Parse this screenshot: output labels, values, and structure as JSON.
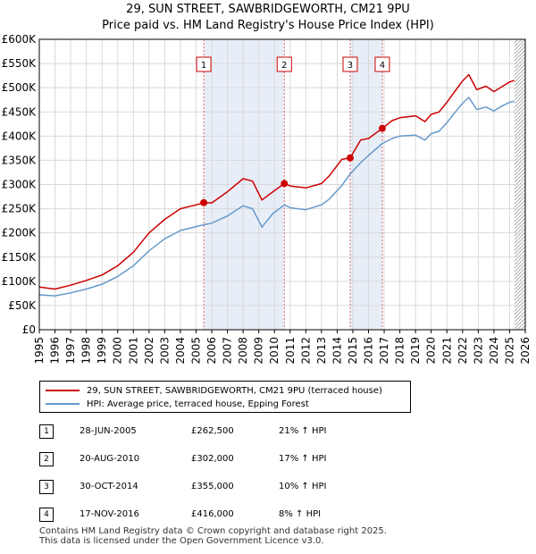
{
  "title": {
    "line1": "29, SUN STREET, SAWBRIDGEWORTH, CM21 9PU",
    "line2": "Price paid vs. HM Land Registry's House Price Index (HPI)"
  },
  "chart_data": {
    "type": "line",
    "title": "29, SUN STREET, SAWBRIDGEWORTH, CM21 9PU - Price paid vs. HM Land Registry's House Price Index (HPI)",
    "xlabel": "",
    "ylabel": "",
    "xlim": [
      1995,
      2026
    ],
    "ylim": [
      0,
      600000
    ],
    "yticks": [
      {
        "value": 0,
        "label": "£0"
      },
      {
        "value": 50000,
        "label": "£50K"
      },
      {
        "value": 100000,
        "label": "£100K"
      },
      {
        "value": 150000,
        "label": "£150K"
      },
      {
        "value": 200000,
        "label": "£200K"
      },
      {
        "value": 250000,
        "label": "£250K"
      },
      {
        "value": 300000,
        "label": "£300K"
      },
      {
        "value": 350000,
        "label": "£350K"
      },
      {
        "value": 400000,
        "label": "£400K"
      },
      {
        "value": 450000,
        "label": "£450K"
      },
      {
        "value": 500000,
        "label": "£500K"
      },
      {
        "value": 550000,
        "label": "£550K"
      },
      {
        "value": 600000,
        "label": "£600K"
      }
    ],
    "xticks": [
      "1995",
      "1996",
      "1997",
      "1998",
      "1999",
      "2000",
      "2001",
      "2002",
      "2003",
      "2004",
      "2005",
      "2006",
      "2007",
      "2008",
      "2009",
      "2010",
      "2011",
      "2012",
      "2013",
      "2014",
      "2015",
      "2016",
      "2017",
      "2018",
      "2019",
      "2020",
      "2021",
      "2022",
      "2023",
      "2024",
      "2025",
      "2026"
    ],
    "grid": true,
    "series": [
      {
        "name": "29, SUN STREET, SAWBRIDGEWORTH, CM21 9PU (terraced house)",
        "color": "#cc0000",
        "points": [
          [
            1995.0,
            88000
          ],
          [
            1996.0,
            84000
          ],
          [
            1997.0,
            92000
          ],
          [
            1998.0,
            102000
          ],
          [
            1999.0,
            113000
          ],
          [
            2000.0,
            132000
          ],
          [
            2001.0,
            160000
          ],
          [
            2002.0,
            200000
          ],
          [
            2003.0,
            228000
          ],
          [
            2004.0,
            250000
          ],
          [
            2005.0,
            258000
          ],
          [
            2005.49,
            262500
          ],
          [
            2006.0,
            262000
          ],
          [
            2007.0,
            285000
          ],
          [
            2008.0,
            312000
          ],
          [
            2008.6,
            307000
          ],
          [
            2009.2,
            268000
          ],
          [
            2009.9,
            285000
          ],
          [
            2010.63,
            302000
          ],
          [
            2011.0,
            297000
          ],
          [
            2012.0,
            293000
          ],
          [
            2013.0,
            302000
          ],
          [
            2013.5,
            318000
          ],
          [
            2014.3,
            352000
          ],
          [
            2014.83,
            355000
          ],
          [
            2015.5,
            392000
          ],
          [
            2016.0,
            395000
          ],
          [
            2016.88,
            416000
          ],
          [
            2017.5,
            432000
          ],
          [
            2018.0,
            438000
          ],
          [
            2019.0,
            442000
          ],
          [
            2019.6,
            430000
          ],
          [
            2020.0,
            445000
          ],
          [
            2020.5,
            450000
          ],
          [
            2021.0,
            470000
          ],
          [
            2021.5,
            492000
          ],
          [
            2022.0,
            514000
          ],
          [
            2022.4,
            527000
          ],
          [
            2022.9,
            496000
          ],
          [
            2023.5,
            503000
          ],
          [
            2024.0,
            492000
          ],
          [
            2024.5,
            502000
          ],
          [
            2025.0,
            512000
          ],
          [
            2025.3,
            515000
          ]
        ]
      },
      {
        "name": "HPI: Average price, terraced house, Epping Forest",
        "color": "#6699cc",
        "points": [
          [
            1995.0,
            72000
          ],
          [
            1996.0,
            70000
          ],
          [
            1997.0,
            76000
          ],
          [
            1998.0,
            84000
          ],
          [
            1999.0,
            94000
          ],
          [
            2000.0,
            110000
          ],
          [
            2001.0,
            132000
          ],
          [
            2002.0,
            163000
          ],
          [
            2003.0,
            188000
          ],
          [
            2004.0,
            205000
          ],
          [
            2005.0,
            213000
          ],
          [
            2005.49,
            217000
          ],
          [
            2006.0,
            220000
          ],
          [
            2007.0,
            235000
          ],
          [
            2008.0,
            256000
          ],
          [
            2008.6,
            250000
          ],
          [
            2009.2,
            212000
          ],
          [
            2009.9,
            240000
          ],
          [
            2010.63,
            258000
          ],
          [
            2011.0,
            252000
          ],
          [
            2012.0,
            248000
          ],
          [
            2013.0,
            258000
          ],
          [
            2013.5,
            270000
          ],
          [
            2014.3,
            298000
          ],
          [
            2014.83,
            322000
          ],
          [
            2015.5,
            345000
          ],
          [
            2016.0,
            360000
          ],
          [
            2016.88,
            385000
          ],
          [
            2017.5,
            395000
          ],
          [
            2018.0,
            400000
          ],
          [
            2019.0,
            402000
          ],
          [
            2019.6,
            392000
          ],
          [
            2020.0,
            405000
          ],
          [
            2020.5,
            410000
          ],
          [
            2021.0,
            428000
          ],
          [
            2021.5,
            448000
          ],
          [
            2022.0,
            468000
          ],
          [
            2022.4,
            480000
          ],
          [
            2022.9,
            455000
          ],
          [
            2023.5,
            460000
          ],
          [
            2024.0,
            452000
          ],
          [
            2024.5,
            462000
          ],
          [
            2025.0,
            470000
          ],
          [
            2025.3,
            472000
          ]
        ]
      }
    ],
    "sales": [
      {
        "num": "1",
        "x": 2005.49,
        "price": 262500,
        "date": "28-JUN-2005",
        "price_label": "£262,500",
        "hpi": "21% ↑ HPI"
      },
      {
        "num": "2",
        "x": 2010.63,
        "price": 302000,
        "date": "20-AUG-2010",
        "price_label": "£302,000",
        "hpi": "17% ↑ HPI"
      },
      {
        "num": "3",
        "x": 2014.83,
        "price": 355000,
        "date": "30-OCT-2014",
        "price_label": "£355,000",
        "hpi": "10% ↑ HPI"
      },
      {
        "num": "4",
        "x": 2016.88,
        "price": 416000,
        "date": "17-NOV-2016",
        "price_label": "£416,000",
        "hpi": "8% ↑ HPI"
      }
    ],
    "shaded_ranges": [
      [
        2005.49,
        2010.63
      ],
      [
        2014.83,
        2016.88
      ]
    ],
    "future_from": 2025.3
  },
  "legend": {
    "entries": [
      {
        "label": "29, SUN STREET, SAWBRIDGEWORTH, CM21 9PU (terraced house)",
        "color": "#cc0000"
      },
      {
        "label": "HPI: Average price, terraced house, Epping Forest",
        "color": "#6699cc"
      }
    ]
  },
  "footer": {
    "line1": "Contains HM Land Registry data © Crown copyright and database right 2025.",
    "line2": "This data is licensed under the Open Government Licence v3.0."
  }
}
